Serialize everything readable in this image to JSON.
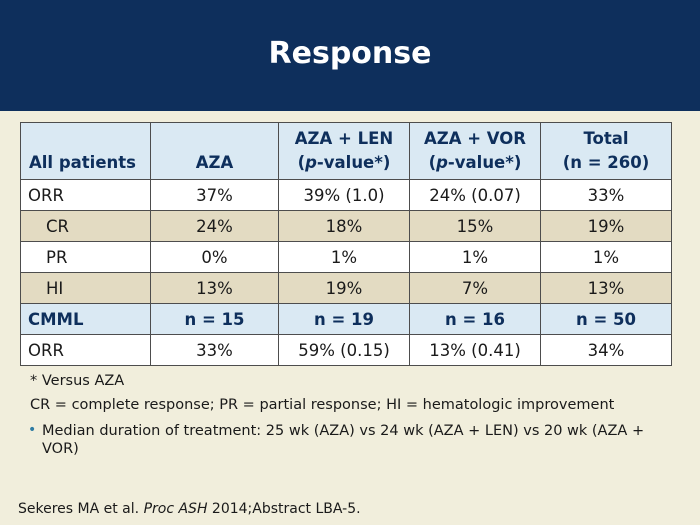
{
  "title": "Response",
  "table": {
    "headers": [
      {
        "line1": "All patients",
        "line2": ""
      },
      {
        "line1": "AZA",
        "line2": ""
      },
      {
        "line1": "AZA + LEN",
        "line2_italic": "p",
        "line2_rest": "-value*)"
      },
      {
        "line1": "AZA + VOR",
        "line2_italic": "p",
        "line2_rest": "-value*)"
      },
      {
        "line1": "Total",
        "line2": "(n = 260)"
      }
    ],
    "rows": [
      {
        "label": "ORR",
        "cells": [
          "37%",
          "39% (1.0)",
          "24% (0.07)",
          "33%"
        ]
      },
      {
        "label": "CR",
        "cells": [
          "24%",
          "18%",
          "15%",
          "19%"
        ]
      },
      {
        "label": "PR",
        "cells": [
          "0%",
          "1%",
          "1%",
          "1%"
        ]
      },
      {
        "label": "HI",
        "cells": [
          "13%",
          "19%",
          "7%",
          "13%"
        ]
      },
      {
        "label": "CMML",
        "cells": [
          "n = 15",
          "n = 19",
          "n = 16",
          "n = 50"
        ]
      },
      {
        "label": "ORR",
        "cells": [
          "33%",
          "59% (0.15)",
          "13% (0.41)",
          "34%"
        ]
      }
    ]
  },
  "footnotes": {
    "versus": "* Versus AZA",
    "abbrev": "CR = complete response; PR = partial response; HI = hematologic improvement",
    "bullet": "Median duration of treatment: 25 wk (AZA) vs 24 wk (AZA + LEN) vs 20 wk (AZA + VOR)"
  },
  "citation": {
    "authors": "Sekeres MA et al.",
    "journal": "Proc ASH",
    "rest": "2014;Abstract LBA-5."
  }
}
